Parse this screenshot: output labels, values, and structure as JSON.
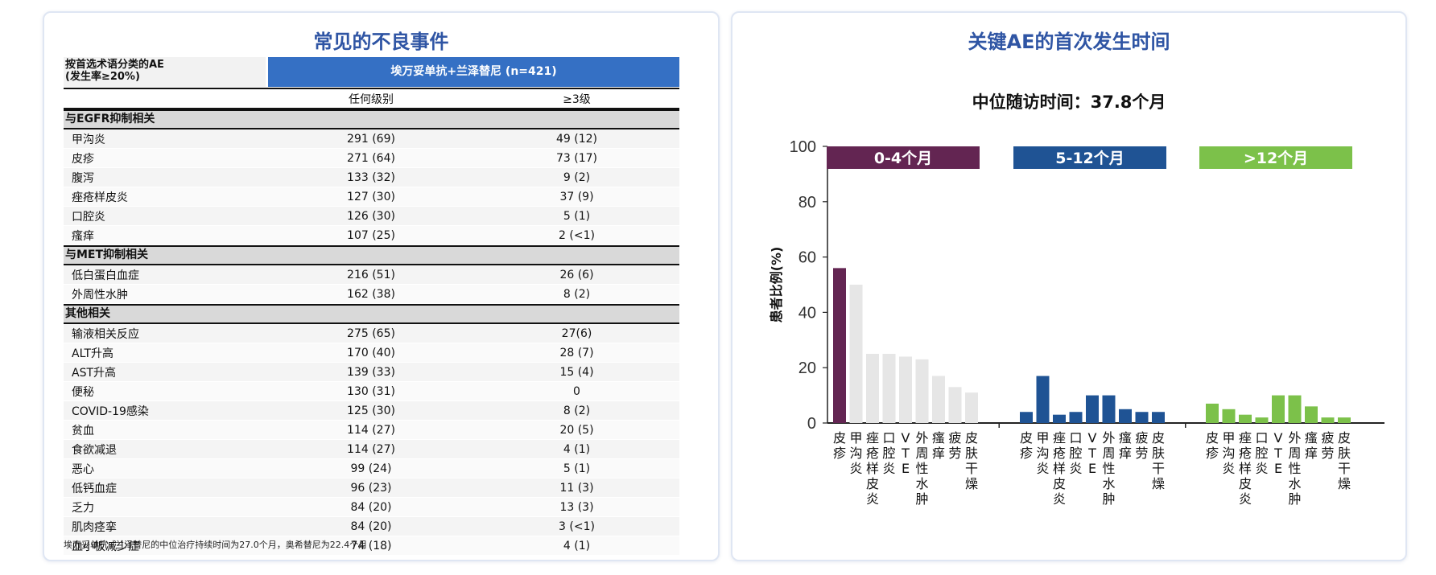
{
  "table_title": "常见的不良事件",
  "table": {
    "header_label_line1": "按首选术语分类的AE",
    "header_label_line2": "(发生率≥20%)",
    "group_header": "埃万妥单抗+兰泽替尼 (n=421)",
    "col1": "任何级别",
    "col2": "≥3级",
    "sections": [
      {
        "name": "与EGFR抑制相关",
        "rows": [
          {
            "ae": "甲沟炎",
            "any": "291 (69)",
            "g3": "49 (12)"
          },
          {
            "ae": "皮疹",
            "any": "271 (64)",
            "g3": "73 (17)"
          },
          {
            "ae": "腹泻",
            "any": "133 (32)",
            "g3": "9 (2)"
          },
          {
            "ae": "痤疮样皮炎",
            "any": "127 (30)",
            "g3": "37 (9)"
          },
          {
            "ae": "口腔炎",
            "any": "126 (30)",
            "g3": "5 (1)"
          },
          {
            "ae": "瘙痒",
            "any": "107 (25)",
            "g3": "2 (<1)"
          }
        ]
      },
      {
        "name": "与MET抑制相关",
        "rows": [
          {
            "ae": "低白蛋白血症",
            "any": "216 (51)",
            "g3": "26 (6)"
          },
          {
            "ae": "外周性水肿",
            "any": "162 (38)",
            "g3": "8 (2)"
          }
        ]
      },
      {
        "name": "其他相关",
        "rows": [
          {
            "ae": "输液相关反应",
            "any": "275 (65)",
            "g3": "27(6)"
          },
          {
            "ae": "ALT升高",
            "any": "170 (40)",
            "g3": "28 (7)"
          },
          {
            "ae": "AST升高",
            "any": "139 (33)",
            "g3": "15 (4)"
          },
          {
            "ae": "便秘",
            "any": "130 (31)",
            "g3": "0"
          },
          {
            "ae": "COVID-19感染",
            "any": "125 (30)",
            "g3": "8 (2)"
          },
          {
            "ae": "贫血",
            "any": "114 (27)",
            "g3": "20 (5)"
          },
          {
            "ae": "食欲减退",
            "any": "114 (27)",
            "g3": "4 (1)"
          },
          {
            "ae": "恶心",
            "any": "99 (24)",
            "g3": "5 (1)"
          },
          {
            "ae": "低钙血症",
            "any": "96 (23)",
            "g3": "11 (3)"
          },
          {
            "ae": "乏力",
            "any": "84 (20)",
            "g3": "13 (3)"
          },
          {
            "ae": "肌肉痉挛",
            "any": "84 (20)",
            "g3": "3 (<1)"
          },
          {
            "ae": "血小板减少症",
            "any": "74 (18)",
            "g3": "4 (1)"
          }
        ]
      }
    ],
    "footnote": "埃万妥单抗+兰泽替尼的中位治疗持续时间为27.0个月，奥希替尼为22.4个月"
  },
  "chart_title": "关键AE的首次发生时间",
  "chart_data": {
    "type": "bar",
    "title": "关键AE的首次发生时间",
    "subtitle": "中位随访时间：37.8个月",
    "ylabel": "患者比例(%)",
    "ylim": [
      0,
      100
    ],
    "yticks": [
      0,
      20,
      40,
      60,
      80,
      100
    ],
    "categories": [
      "皮疹",
      "甲沟炎",
      "痤疮样皮炎",
      "口腔炎",
      "VTE",
      "外周性水肿",
      "瘙痒",
      "疲劳",
      "皮肤干燥"
    ],
    "groups": [
      {
        "name": "0-4个月",
        "color": "#632552",
        "values": [
          56,
          50,
          25,
          25,
          24,
          23,
          17,
          13,
          11
        ],
        "bar_colors": [
          "#632552",
          "#e6e6e6",
          "#e6e6e6",
          "#e6e6e6",
          "#e6e6e6",
          "#e6e6e6",
          "#e6e6e6",
          "#e6e6e6",
          "#e6e6e6"
        ]
      },
      {
        "name": "5-12个月",
        "color": "#1f5394",
        "values": [
          4,
          17,
          3,
          4,
          10,
          10,
          5,
          4,
          4
        ],
        "bar_colors": [
          "#1f5394",
          "#1f5394",
          "#1f5394",
          "#1f5394",
          "#1f5394",
          "#1f5394",
          "#1f5394",
          "#1f5394",
          "#1f5394"
        ]
      },
      {
        "name": ">12个月",
        "color": "#7cc14a",
        "values": [
          7,
          5,
          3,
          2,
          10,
          10,
          6,
          2,
          2
        ],
        "bar_colors": [
          "#7cc14a",
          "#7cc14a",
          "#7cc14a",
          "#7cc14a",
          "#7cc14a",
          "#7cc14a",
          "#7cc14a",
          "#7cc14a",
          "#7cc14a"
        ]
      }
    ]
  }
}
